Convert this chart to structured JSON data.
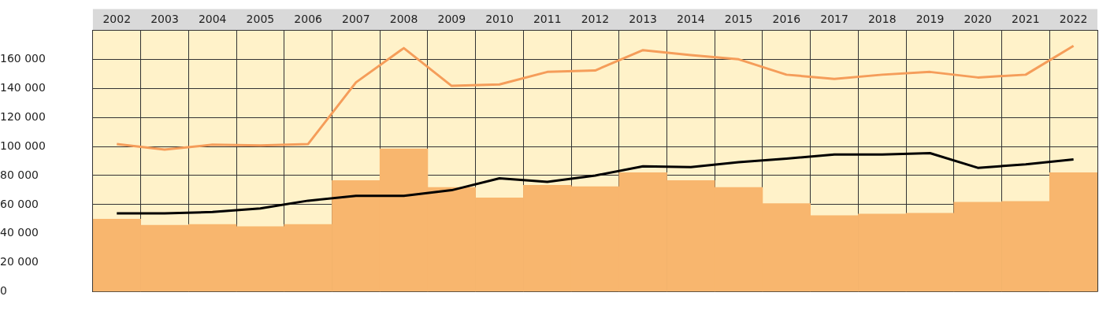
{
  "chart_data": {
    "type": "bar",
    "categories": [
      "2002",
      "2003",
      "2004",
      "2005",
      "2006",
      "2007",
      "2008",
      "2009",
      "2010",
      "2011",
      "2012",
      "2013",
      "2014",
      "2015",
      "2016",
      "2017",
      "2018",
      "2019",
      "2020",
      "2021",
      "2022"
    ],
    "series": [
      {
        "color": "#f8b66e",
        "values": [
          50000,
          45800,
          46300,
          44800,
          46300,
          76600,
          98300,
          71800,
          64600,
          73300,
          72300,
          81900,
          76600,
          71800,
          60700,
          52500,
          53500,
          54000,
          61700,
          62200,
          81900
        ]
      },
      {
        "type": "line",
        "color": "#f59d5a",
        "values": [
          101700,
          97800,
          101200,
          100700,
          101700,
          144100,
          167700,
          141700,
          142700,
          151300,
          152300,
          166300,
          162900,
          160000,
          149400,
          146500,
          149400,
          151300,
          147500,
          149400,
          169200
        ]
      },
      {
        "type": "line",
        "color": "#000000",
        "values": [
          54000,
          54000,
          54900,
          57300,
          62700,
          66000,
          66000,
          69900,
          78100,
          75700,
          80000,
          86300,
          85800,
          89200,
          91600,
          94500,
          94500,
          95400,
          85300,
          87700,
          91100
        ]
      }
    ],
    "ylim": [
      0,
      180000
    ],
    "yticks": [
      {
        "value": 0,
        "label": "0"
      },
      {
        "value": 20000,
        "label": "20 000"
      },
      {
        "value": 40000,
        "label": "40 000"
      },
      {
        "value": 60000,
        "label": "60 000"
      },
      {
        "value": 80000,
        "label": "80 000"
      },
      {
        "value": 100000,
        "label": "100 000"
      },
      {
        "value": 120000,
        "label": "120 000"
      },
      {
        "value": 140000,
        "label": "140 000"
      },
      {
        "value": 160000,
        "label": "160 000"
      },
      {
        "value": 180000,
        "label": null
      }
    ],
    "grid": true,
    "legend": false,
    "marker": "none",
    "line_style": "solid"
  }
}
